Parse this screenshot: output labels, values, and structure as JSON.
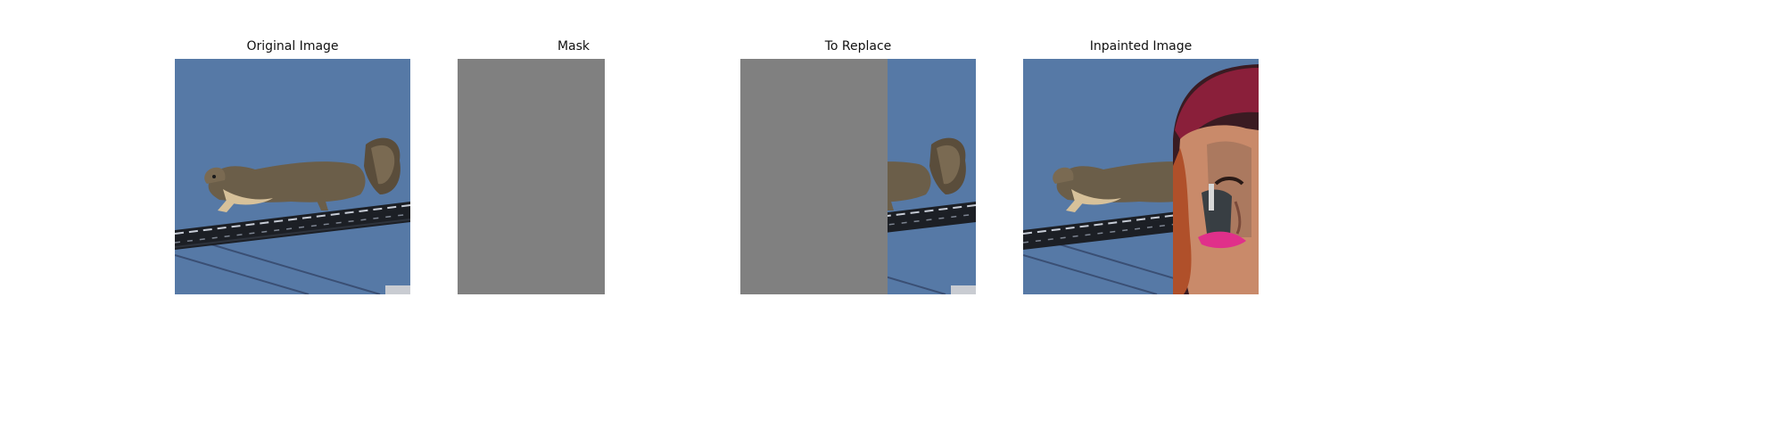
{
  "figure": {
    "panels": [
      {
        "title": "Original Image"
      },
      {
        "title": "Mask"
      },
      {
        "title": "To Replace"
      },
      {
        "title": "Inpainted Image"
      }
    ]
  },
  "colors": {
    "sky": "#5679a6",
    "mask_gray": "#808080",
    "squirrel_body": "#6b5e49",
    "squirrel_belly": "#d7c19a",
    "wire_dark": "#1c1f25",
    "wire_highlight": "#c7ccd6",
    "thin_wire": "#3a4f74",
    "hair_red": "#8a1f3a",
    "skin": "#c98a6a",
    "lips": "#e0308a"
  }
}
